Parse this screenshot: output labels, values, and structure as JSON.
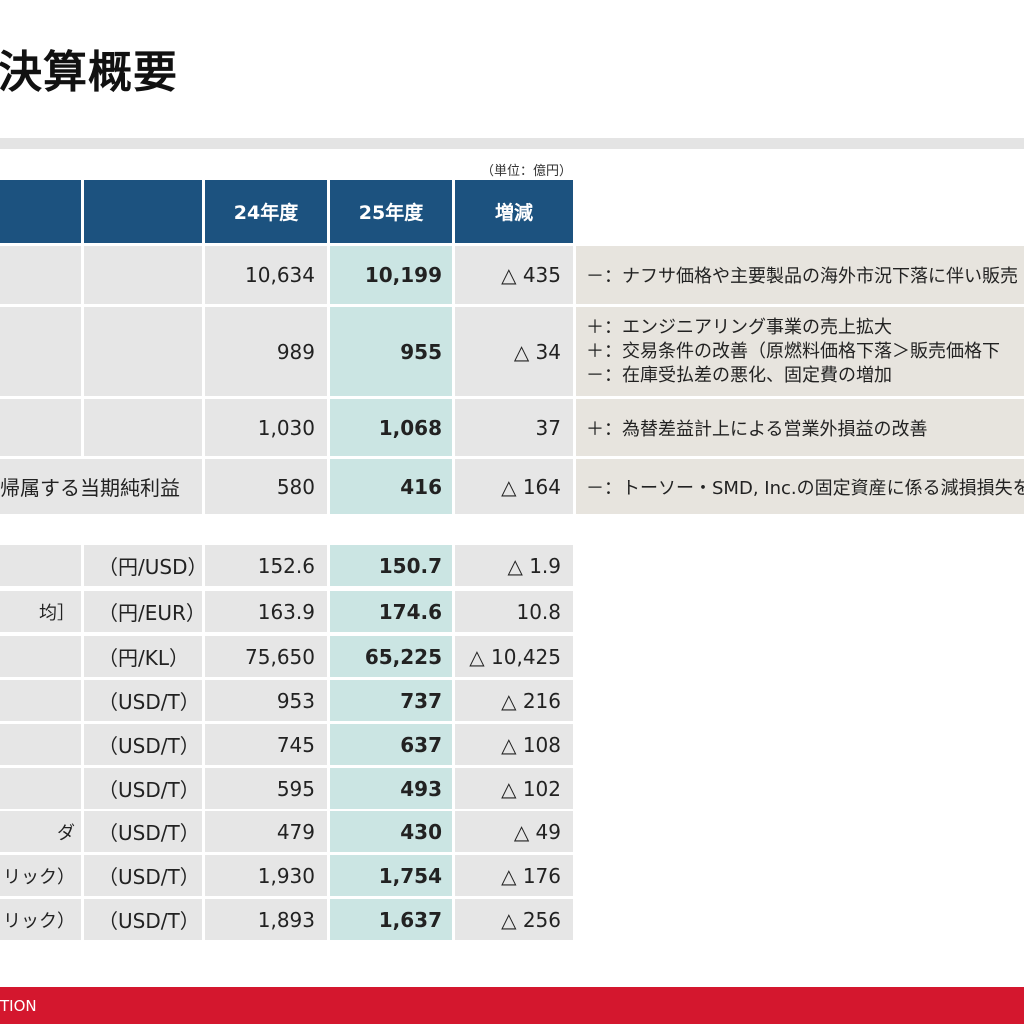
{
  "title": "決算概要",
  "unit_note": "（単位：億円）",
  "headers": {
    "prev": "24年度",
    "curr": "25年度",
    "diff": "増減"
  },
  "summary_rows": [
    {
      "label": "",
      "prev": "10,634",
      "curr": "10,199",
      "diff": "△ 435",
      "notes": [
        "－：ナフサ価格や主要製品の海外市況下落に伴い販売"
      ]
    },
    {
      "label": "",
      "prev": "989",
      "curr": "955",
      "diff": "△ 34",
      "notes": [
        "＋：エンジニアリング事業の売上拡大",
        "＋：交易条件の改善（原燃料価格下落＞販売価格下",
        "－：在庫受払差の悪化、固定費の増加"
      ]
    },
    {
      "label": "",
      "prev": "1,030",
      "curr": "1,068",
      "diff": "37",
      "notes": [
        "＋：為替差益計上による営業外損益の改善"
      ]
    },
    {
      "label": "帰属する当期純利益",
      "prev": "580",
      "curr": "416",
      "diff": "△ 164",
      "notes": [
        "－：トーソー・SMD, Inc.の固定資産に係る減損損失を"
      ]
    }
  ],
  "market_rows": [
    {
      "label": "",
      "unit": "（円/USD）",
      "prev": "152.6",
      "curr": "150.7",
      "diff": "△ 1.9"
    },
    {
      "label": "均］",
      "unit": "（円/EUR）",
      "prev": "163.9",
      "curr": "174.6",
      "diff": "10.8"
    },
    {
      "label": "",
      "unit": "（円/KL）",
      "prev": "75,650",
      "curr": "65,225",
      "diff": "△ 10,425"
    },
    {
      "label": "",
      "unit": "（USD/T）",
      "prev": "953",
      "curr": "737",
      "diff": "△ 216"
    },
    {
      "label": "",
      "unit": "（USD/T）",
      "prev": "745",
      "curr": "637",
      "diff": "△ 108"
    },
    {
      "label": "",
      "unit": "（USD/T）",
      "prev": "595",
      "curr": "493",
      "diff": "△ 102"
    },
    {
      "label": "ダ",
      "unit": "（USD/T）",
      "prev": "479",
      "curr": "430",
      "diff": "△ 49"
    },
    {
      "label": "リック）",
      "unit": "（USD/T）",
      "prev": "1,930",
      "curr": "1,754",
      "diff": "△ 176"
    },
    {
      "label": "リック）",
      "unit": "（USD/T）",
      "prev": "1,893",
      "curr": "1,637",
      "diff": "△ 256"
    }
  ],
  "footer": "TION",
  "colors": {
    "header": "#1c527f",
    "current_col": "#cbe5e3",
    "footer": "#d4172e"
  }
}
